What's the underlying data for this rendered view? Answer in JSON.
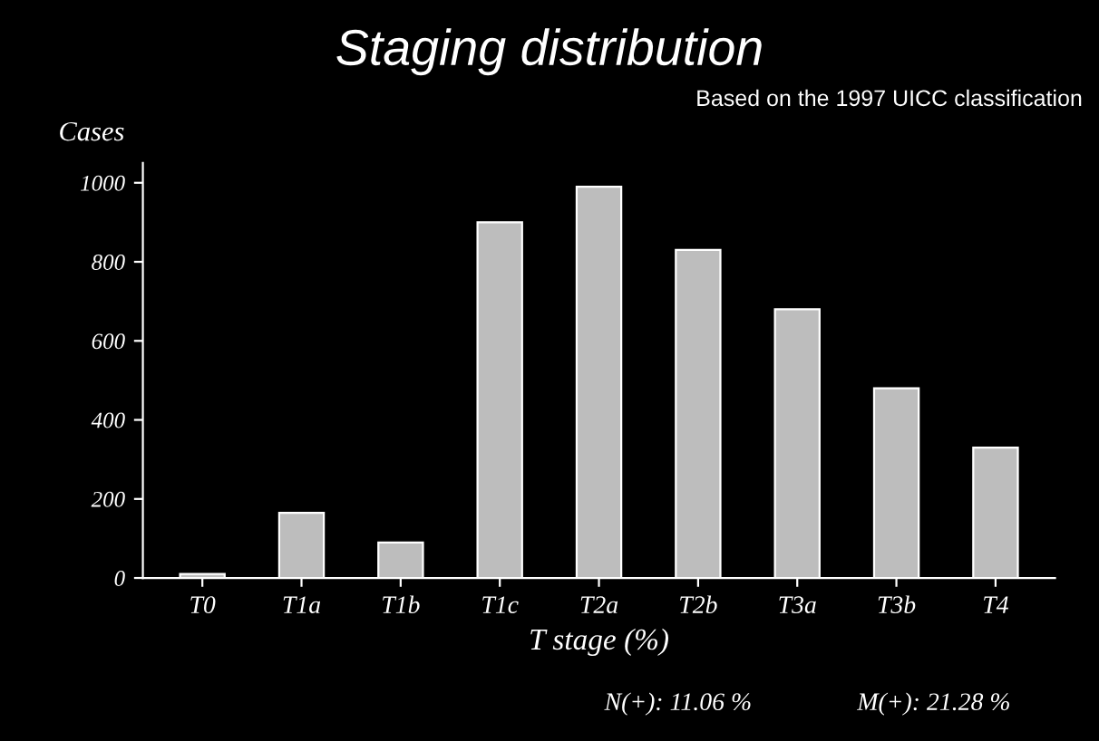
{
  "chart_data": {
    "type": "bar",
    "title": "Staging distribution",
    "subtitle": "Based on the 1997 UICC classification",
    "ylabel": "Cases",
    "xlabel": "T stage (%)",
    "categories": [
      "T0",
      "T1a",
      "T1b",
      "T1c",
      "T2a",
      "T2b",
      "T3a",
      "T3b",
      "T4"
    ],
    "values": [
      10,
      165,
      90,
      900,
      990,
      830,
      680,
      480,
      330
    ],
    "color": "#bdbdbd",
    "ylim": [
      0,
      1050
    ],
    "yticks": [
      0,
      200,
      400,
      600,
      800,
      1000
    ],
    "grid": false,
    "annotations": [
      "N(+): 11.06 %",
      "M(+): 21.28 %"
    ]
  }
}
